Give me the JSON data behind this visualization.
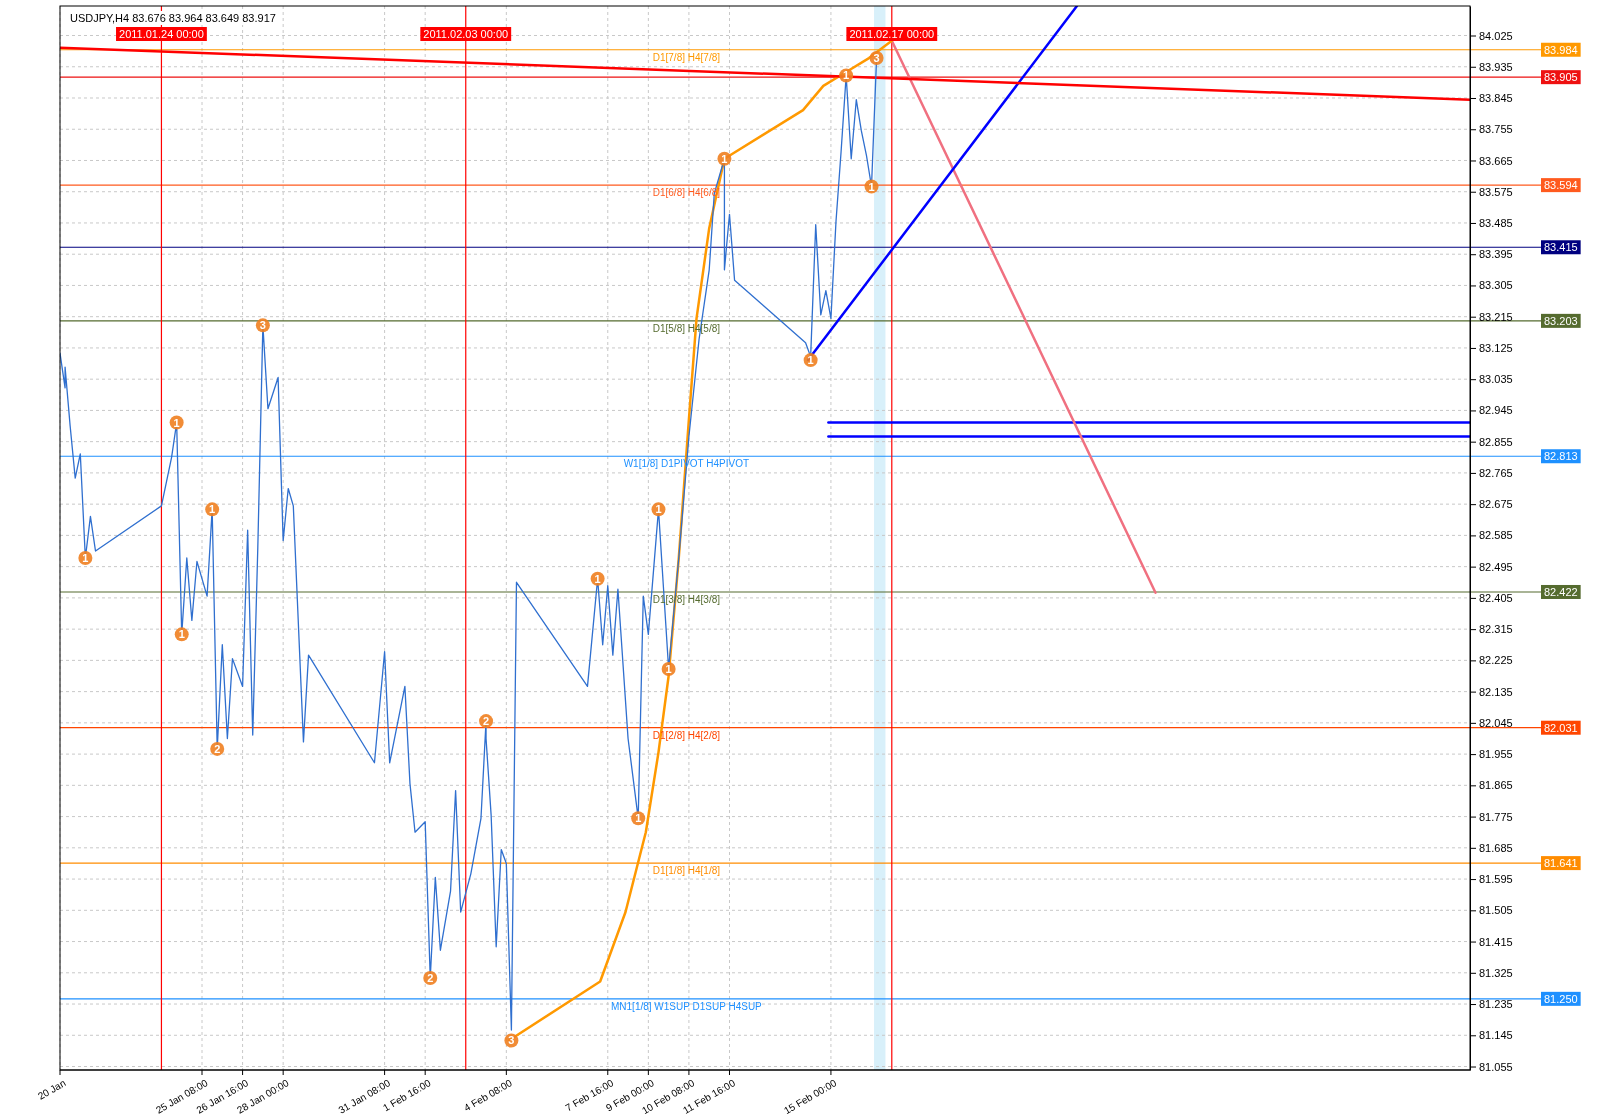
{
  "chart_data": {
    "type": "line",
    "title": "USDJPY,H4  83.676 83.964 83.649 83.917",
    "xlim": [
      "2011-01-20T16:00",
      "2011-03-08T00:00"
    ],
    "ylim": [
      81.045,
      84.11
    ],
    "xticks": [
      {
        "value": "2011-01-20T16:00",
        "label": "20 Jan"
      },
      {
        "value": "2011-01-25T08:00",
        "label": "25 Jan 08:00"
      },
      {
        "value": "2011-01-26T16:00",
        "label": "26 Jan 16:00"
      },
      {
        "value": "2011-01-28T00:00",
        "label": "28 Jan 00:00"
      },
      {
        "value": "2011-01-31T08:00",
        "label": "31 Jan 08:00"
      },
      {
        "value": "2011-02-01T16:00",
        "label": "1 Feb 16:00"
      },
      {
        "value": "2011-02-04T08:00",
        "label": "4 Feb 08:00"
      },
      {
        "value": "2011-02-07T16:00",
        "label": "7 Feb 16:00"
      },
      {
        "value": "2011-02-09T00:00",
        "label": "9 Feb 00:00"
      },
      {
        "value": "2011-02-10T08:00",
        "label": "10 Feb 08:00"
      },
      {
        "value": "2011-02-11T16:00",
        "label": "11 Feb 16:00"
      },
      {
        "value": "2011-02-15T00:00",
        "label": "15 Feb 00:00"
      }
    ],
    "yticks": [
      81.055,
      81.145,
      81.235,
      81.325,
      81.415,
      81.505,
      81.595,
      81.685,
      81.775,
      81.865,
      81.955,
      82.045,
      82.135,
      82.225,
      82.315,
      82.405,
      82.495,
      82.585,
      82.675,
      82.765,
      82.855,
      82.945,
      83.035,
      83.125,
      83.215,
      83.305,
      83.395,
      83.485,
      83.575,
      83.665,
      83.755,
      83.845,
      83.935,
      84.025
    ],
    "grid": true,
    "line_style": "solid",
    "series": [
      {
        "color": "#2f6fcf",
        "x": [
          "2011-01-20T16:00",
          "2011-01-20T20:00",
          "2011-01-20T20:00",
          "2011-01-21T00:00",
          "2011-01-21T04:00",
          "2011-01-21T08:00",
          "2011-01-21T12:00",
          "2011-01-21T16:00",
          "2011-01-21T20:00",
          "2011-01-24T00:00",
          "2011-01-24T08:00",
          "2011-01-24T12:00",
          "2011-01-24T16:00",
          "2011-01-24T20:00",
          "2011-01-25T00:00",
          "2011-01-25T04:00",
          "2011-01-25T12:00",
          "2011-01-25T16:00",
          "2011-01-25T20:00",
          "2011-01-26T00:00",
          "2011-01-26T04:00",
          "2011-01-26T08:00",
          "2011-01-26T16:00",
          "2011-01-26T20:00",
          "2011-01-27T00:00",
          "2011-01-27T04:00",
          "2011-01-27T08:00",
          "2011-01-27T12:00",
          "2011-01-27T20:00",
          "2011-01-28T00:00",
          "2011-01-28T04:00",
          "2011-01-28T08:00",
          "2011-01-28T16:00",
          "2011-01-28T20:00",
          "2011-01-31T00:00",
          "2011-01-31T08:00",
          "2011-01-31T12:00",
          "2011-02-01T00:00",
          "2011-02-01T04:00",
          "2011-02-01T08:00",
          "2011-02-01T16:00",
          "2011-02-01T20:00",
          "2011-02-02T00:00",
          "2011-02-02T04:00",
          "2011-02-02T12:00",
          "2011-02-02T16:00",
          "2011-02-02T20:00",
          "2011-02-03T04:00",
          "2011-02-03T12:00",
          "2011-02-03T16:00",
          "2011-02-03T16:00",
          "2011-02-03T20:00",
          "2011-02-04T00:00",
          "2011-02-04T04:00",
          "2011-02-04T08:00",
          "2011-02-04T12:00",
          "2011-02-04T16:00",
          "2011-02-07T00:00",
          "2011-02-07T08:00",
          "2011-02-07T12:00",
          "2011-02-07T16:00",
          "2011-02-07T20:00",
          "2011-02-08T00:00",
          "2011-02-08T08:00",
          "2011-02-08T16:00",
          "2011-02-08T20:00",
          "2011-02-09T00:00",
          "2011-02-09T08:00",
          "2011-02-09T12:00",
          "2011-02-09T16:00",
          "2011-02-10T00:00",
          "2011-02-10T08:00",
          "2011-02-10T16:00",
          "2011-02-11T00:00",
          "2011-02-11T04:00",
          "2011-02-11T12:00",
          "2011-02-11T12:00",
          "2011-02-11T16:00",
          "2011-02-11T20:00",
          "2011-02-14T04:00",
          "2011-02-14T08:00",
          "2011-02-14T12:00",
          "2011-02-14T16:00",
          "2011-02-14T20:00",
          "2011-02-15T00:00",
          "2011-02-15T04:00",
          "2011-02-15T08:00",
          "2011-02-15T12:00",
          "2011-02-15T16:00",
          "2011-02-15T20:00",
          "2011-02-16T00:00",
          "2011-02-16T04:00",
          "2011-02-16T08:00",
          "2011-02-16T12:00"
        ],
        "values": [
          83.11,
          83.01,
          83.07,
          82.9,
          82.75,
          82.82,
          82.52,
          82.64,
          82.54,
          82.67,
          82.81,
          82.91,
          82.3,
          82.52,
          82.34,
          82.51,
          82.41,
          82.66,
          81.97,
          82.27,
          82.0,
          82.23,
          82.15,
          82.6,
          82.01,
          82.55,
          83.19,
          82.95,
          83.04,
          82.57,
          82.72,
          82.67,
          81.99,
          82.24,
          81.93,
          82.25,
          81.93,
          82.15,
          81.87,
          81.73,
          81.76,
          81.31,
          81.6,
          81.39,
          81.56,
          81.85,
          81.5,
          81.61,
          81.77,
          82.05,
          82.0,
          81.78,
          81.4,
          81.68,
          81.64,
          81.16,
          82.45,
          82.15,
          82.46,
          82.27,
          82.44,
          82.24,
          82.43,
          82.0,
          81.77,
          82.41,
          82.3,
          82.66,
          82.43,
          82.2,
          82.52,
          82.87,
          83.15,
          83.35,
          83.57,
          83.67,
          83.35,
          83.51,
          83.32,
          83.14,
          83.1,
          83.48,
          83.22,
          83.29,
          83.21,
          83.49,
          83.69,
          83.91,
          83.67,
          83.84,
          83.75,
          83.68,
          83.59,
          83.96
        ]
      },
      {
        "color": "#ff0000",
        "x": [
          "2011-01-20T16:00",
          "2011-03-08T00:00"
        ],
        "values": [
          83.99,
          83.84
        ]
      },
      {
        "color": "#ff9900",
        "x": [
          "2011-02-04T10:00",
          "2011-02-07T10:00",
          "2011-02-08T06:00",
          "2011-02-08T22:00",
          "2011-02-09T08:00",
          "2011-02-09T16:00",
          "2011-02-10T00:00",
          "2011-02-10T08:00",
          "2011-02-10T14:00",
          "2011-02-11T00:00",
          "2011-02-11T12:00",
          "2011-02-14T02:00",
          "2011-02-14T18:00",
          "2011-02-15T12:00",
          "2011-02-16T06:00",
          "2011-02-17T00:00"
        ],
        "values": [
          81.13,
          81.3,
          81.5,
          81.73,
          81.96,
          82.18,
          82.52,
          82.92,
          83.21,
          83.47,
          83.67,
          83.81,
          83.88,
          83.92,
          83.96,
          84.01
        ]
      },
      {
        "color": "#0000ff",
        "x": [
          "2011-02-14T06:00",
          "2011-02-23T02:00"
        ],
        "values": [
          83.09,
          84.11
        ]
      },
      {
        "color": "#f07080",
        "x": [
          "2011-02-17T00:00",
          "2011-02-25T16:00"
        ],
        "values": [
          84.01,
          82.42
        ]
      },
      {
        "color": "#0000ff",
        "x": [
          "2011-02-14T22:00",
          "2011-03-08T00:00"
        ],
        "values": [
          82.91,
          82.91
        ]
      },
      {
        "color": "#0000ff",
        "x": [
          "2011-02-14T22:00",
          "2011-03-08T00:00"
        ],
        "values": [
          82.87,
          82.87
        ]
      }
    ],
    "ref_lines": [
      {
        "axis": "y",
        "value": 83.984,
        "label": "83.984",
        "color": "#ff9900"
      },
      {
        "axis": "y",
        "value": 83.905,
        "label": "83.905",
        "color": "#ee1111"
      },
      {
        "axis": "y",
        "value": 83.594,
        "label": "83.594",
        "color": "#ff5a1e"
      },
      {
        "axis": "y",
        "value": 83.415,
        "label": "83.415",
        "color": "#000080"
      },
      {
        "axis": "y",
        "value": 83.203,
        "label": "83.203",
        "color": "#556b2f"
      },
      {
        "axis": "y",
        "value": 82.813,
        "label": "82.813",
        "color": "#1e90ff"
      },
      {
        "axis": "y",
        "value": 82.422,
        "label": "82.422",
        "color": "#556b2f"
      },
      {
        "axis": "y",
        "value": 82.031,
        "label": "82.031",
        "color": "#ff4500"
      },
      {
        "axis": "y",
        "value": 81.641,
        "label": "81.641",
        "color": "#ff8c00"
      },
      {
        "axis": "y",
        "value": 81.25,
        "label": "81.250",
        "color": "#1e90ff"
      },
      {
        "axis": "x",
        "value": "2011-01-24T00:00",
        "label": "2011.01.24 00:00",
        "color": "#ff0000"
      },
      {
        "axis": "x",
        "value": "2011-02-03T00:00",
        "label": "2011.02.03 00:00",
        "color": "#ff0000"
      },
      {
        "axis": "x",
        "value": "2011-02-17T00:00",
        "label": "2011.02.17 00:00",
        "color": "#ff0000"
      }
    ],
    "bands": [
      {
        "axis": "x",
        "from": "2011-02-16T10:00",
        "to": "2011-02-16T19:00",
        "color": "#d8f0fa"
      }
    ],
    "annotations": [
      {
        "text": "D1[7/8] H4[7/8]",
        "x": "2011-02-10T06:00",
        "y": 83.984
      },
      {
        "text": "D1[6/8] H4[6/8]",
        "x": "2011-02-10T06:00",
        "y": 83.594
      },
      {
        "text": "D1[5/8] H4[5/8]",
        "x": "2011-02-10T06:00",
        "y": 83.203
      },
      {
        "text": "W1[1/8] D1PIVOT H4PIVOT",
        "x": "2011-02-10T06:00",
        "y": 82.813
      },
      {
        "text": "D1[3/8] H4[3/8]",
        "x": "2011-02-10T06:00",
        "y": 82.422
      },
      {
        "text": "D1[2/8] H4[2/8]",
        "x": "2011-02-10T06:00",
        "y": 82.031
      },
      {
        "text": "D1[1/8] H4[1/8]",
        "x": "2011-02-10T06:00",
        "y": 81.641
      },
      {
        "text": "MN1[1/8] W1SUP D1SUP H4SUP",
        "x": "2011-02-10T06:00",
        "y": 81.25
      },
      {
        "text": "1",
        "x": "2011-01-21T12:00",
        "y": 82.52
      },
      {
        "text": "1",
        "x": "2011-01-24T12:00",
        "y": 82.91
      },
      {
        "text": "1",
        "x": "2011-01-24T16:00",
        "y": 82.3
      },
      {
        "text": "1",
        "x": "2011-01-25T16:00",
        "y": 82.66
      },
      {
        "text": "1",
        "x": "2011-02-07T08:00",
        "y": 82.46
      },
      {
        "text": "1",
        "x": "2011-02-09T08:00",
        "y": 82.66
      },
      {
        "text": "1",
        "x": "2011-02-09T16:00",
        "y": 82.2
      },
      {
        "text": "1",
        "x": "2011-02-08T16:00",
        "y": 81.77
      },
      {
        "text": "1",
        "x": "2011-02-11T12:00",
        "y": 83.67
      },
      {
        "text": "1",
        "x": "2011-02-14T08:00",
        "y": 83.09
      },
      {
        "text": "1",
        "x": "2011-02-15T12:00",
        "y": 83.91
      },
      {
        "text": "1",
        "x": "2011-02-16T08:00",
        "y": 83.59
      },
      {
        "text": "2",
        "x": "2011-01-25T20:00",
        "y": 81.97
      },
      {
        "text": "2",
        "x": "2011-02-01T20:00",
        "y": 81.31
      },
      {
        "text": "2",
        "x": "2011-02-03T16:00",
        "y": 82.05
      },
      {
        "text": "3",
        "x": "2011-01-27T08:00",
        "y": 83.19
      },
      {
        "text": "3",
        "x": "2011-02-04T12:00",
        "y": 81.13
      },
      {
        "text": "3",
        "x": "2011-02-16T12:00",
        "y": 83.96
      }
    ]
  }
}
